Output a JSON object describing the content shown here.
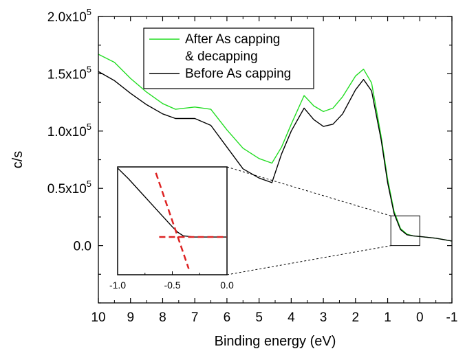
{
  "chart_data": {
    "type": "line",
    "xlabel": "Binding energy (eV)",
    "ylabel": "c/s",
    "xlim": [
      10,
      -1
    ],
    "ylim": [
      -50000,
      200000
    ],
    "x_reversed": true,
    "x_ticks": [
      10,
      9,
      8,
      7,
      6,
      5,
      4,
      3,
      2,
      1,
      0,
      -1
    ],
    "x_tick_labels": [
      "10",
      "9",
      "8",
      "7",
      "6",
      "5",
      "4",
      "3",
      "2",
      "1",
      "0",
      "-1"
    ],
    "y_ticks": [
      0,
      50000,
      100000,
      150000,
      200000
    ],
    "y_tick_labels": [
      {
        "base": "0.0",
        "exp": ""
      },
      {
        "base": "0.5x10",
        "exp": "5"
      },
      {
        "base": "1.0x10",
        "exp": "5"
      },
      {
        "base": "1.5x10",
        "exp": "5"
      },
      {
        "base": "2.0x10",
        "exp": "5"
      }
    ],
    "legend_placement": "top-center",
    "legend": [
      {
        "lines": [
          "After As capping",
          "& decapping"
        ],
        "color": "#22dd22"
      },
      {
        "lines": [
          "Before As capping"
        ],
        "color": "#000000"
      }
    ],
    "series": [
      {
        "color": "#22dd22",
        "x": [
          10,
          9.5,
          9,
          8.5,
          8,
          7.6,
          7,
          6.5,
          6,
          5.5,
          5,
          4.6,
          4.3,
          4,
          3.6,
          3.3,
          3,
          2.7,
          2.4,
          2,
          1.75,
          1.5,
          1.2,
          1,
          0.8,
          0.6,
          0.4,
          0.2,
          0,
          -0.5,
          -1
        ],
        "y": [
          167000,
          160000,
          146000,
          134000,
          124000,
          119000,
          121000,
          119000,
          101000,
          85000,
          76000,
          72000,
          86000,
          106000,
          131000,
          122000,
          117000,
          120000,
          130000,
          148000,
          154000,
          142000,
          95000,
          58000,
          30000,
          15000,
          10000,
          8500,
          8000,
          6500,
          4000
        ]
      },
      {
        "color": "#000000",
        "x": [
          10,
          9.5,
          9,
          8.5,
          8,
          7.6,
          7,
          6.5,
          6,
          5.5,
          5,
          4.6,
          4.3,
          4,
          3.6,
          3.3,
          3,
          2.7,
          2.4,
          2,
          1.75,
          1.5,
          1.2,
          1,
          0.8,
          0.6,
          0.4,
          0.2,
          0,
          -0.5,
          -1
        ],
        "y": [
          152000,
          144000,
          133000,
          123000,
          115000,
          111000,
          111000,
          105000,
          86000,
          67000,
          59000,
          55000,
          80000,
          100000,
          120000,
          110000,
          104000,
          106000,
          115000,
          136000,
          145000,
          135000,
          92000,
          55000,
          28000,
          14000,
          9500,
          8500,
          8000,
          6500,
          4000
        ]
      }
    ],
    "inset": {
      "source_x_range": [
        0.9,
        0
      ],
      "x_ticks": [
        -1.0,
        -0.5,
        0.0
      ],
      "x_tick_labels": [
        "-1.0",
        "-0.5",
        "0.0"
      ],
      "curve_x": [
        -1.0,
        -0.9,
        -0.8,
        -0.7,
        -0.6,
        -0.5,
        -0.45,
        -0.4,
        -0.3,
        -0.2,
        -0.1,
        0.0
      ],
      "curve_y": [
        1.18,
        1.0,
        0.8,
        0.6,
        0.4,
        0.2,
        0.11,
        0.05,
        0.03,
        0.03,
        0.03,
        0.03
      ],
      "fit_color": "#dd2222",
      "fit_lines": [
        {
          "x": [
            -0.65,
            -0.35
          ],
          "y": [
            1.1,
            -0.5
          ]
        },
        {
          "x": [
            -0.62,
            0.0
          ],
          "y": [
            0.03,
            0.03
          ]
        }
      ]
    }
  }
}
